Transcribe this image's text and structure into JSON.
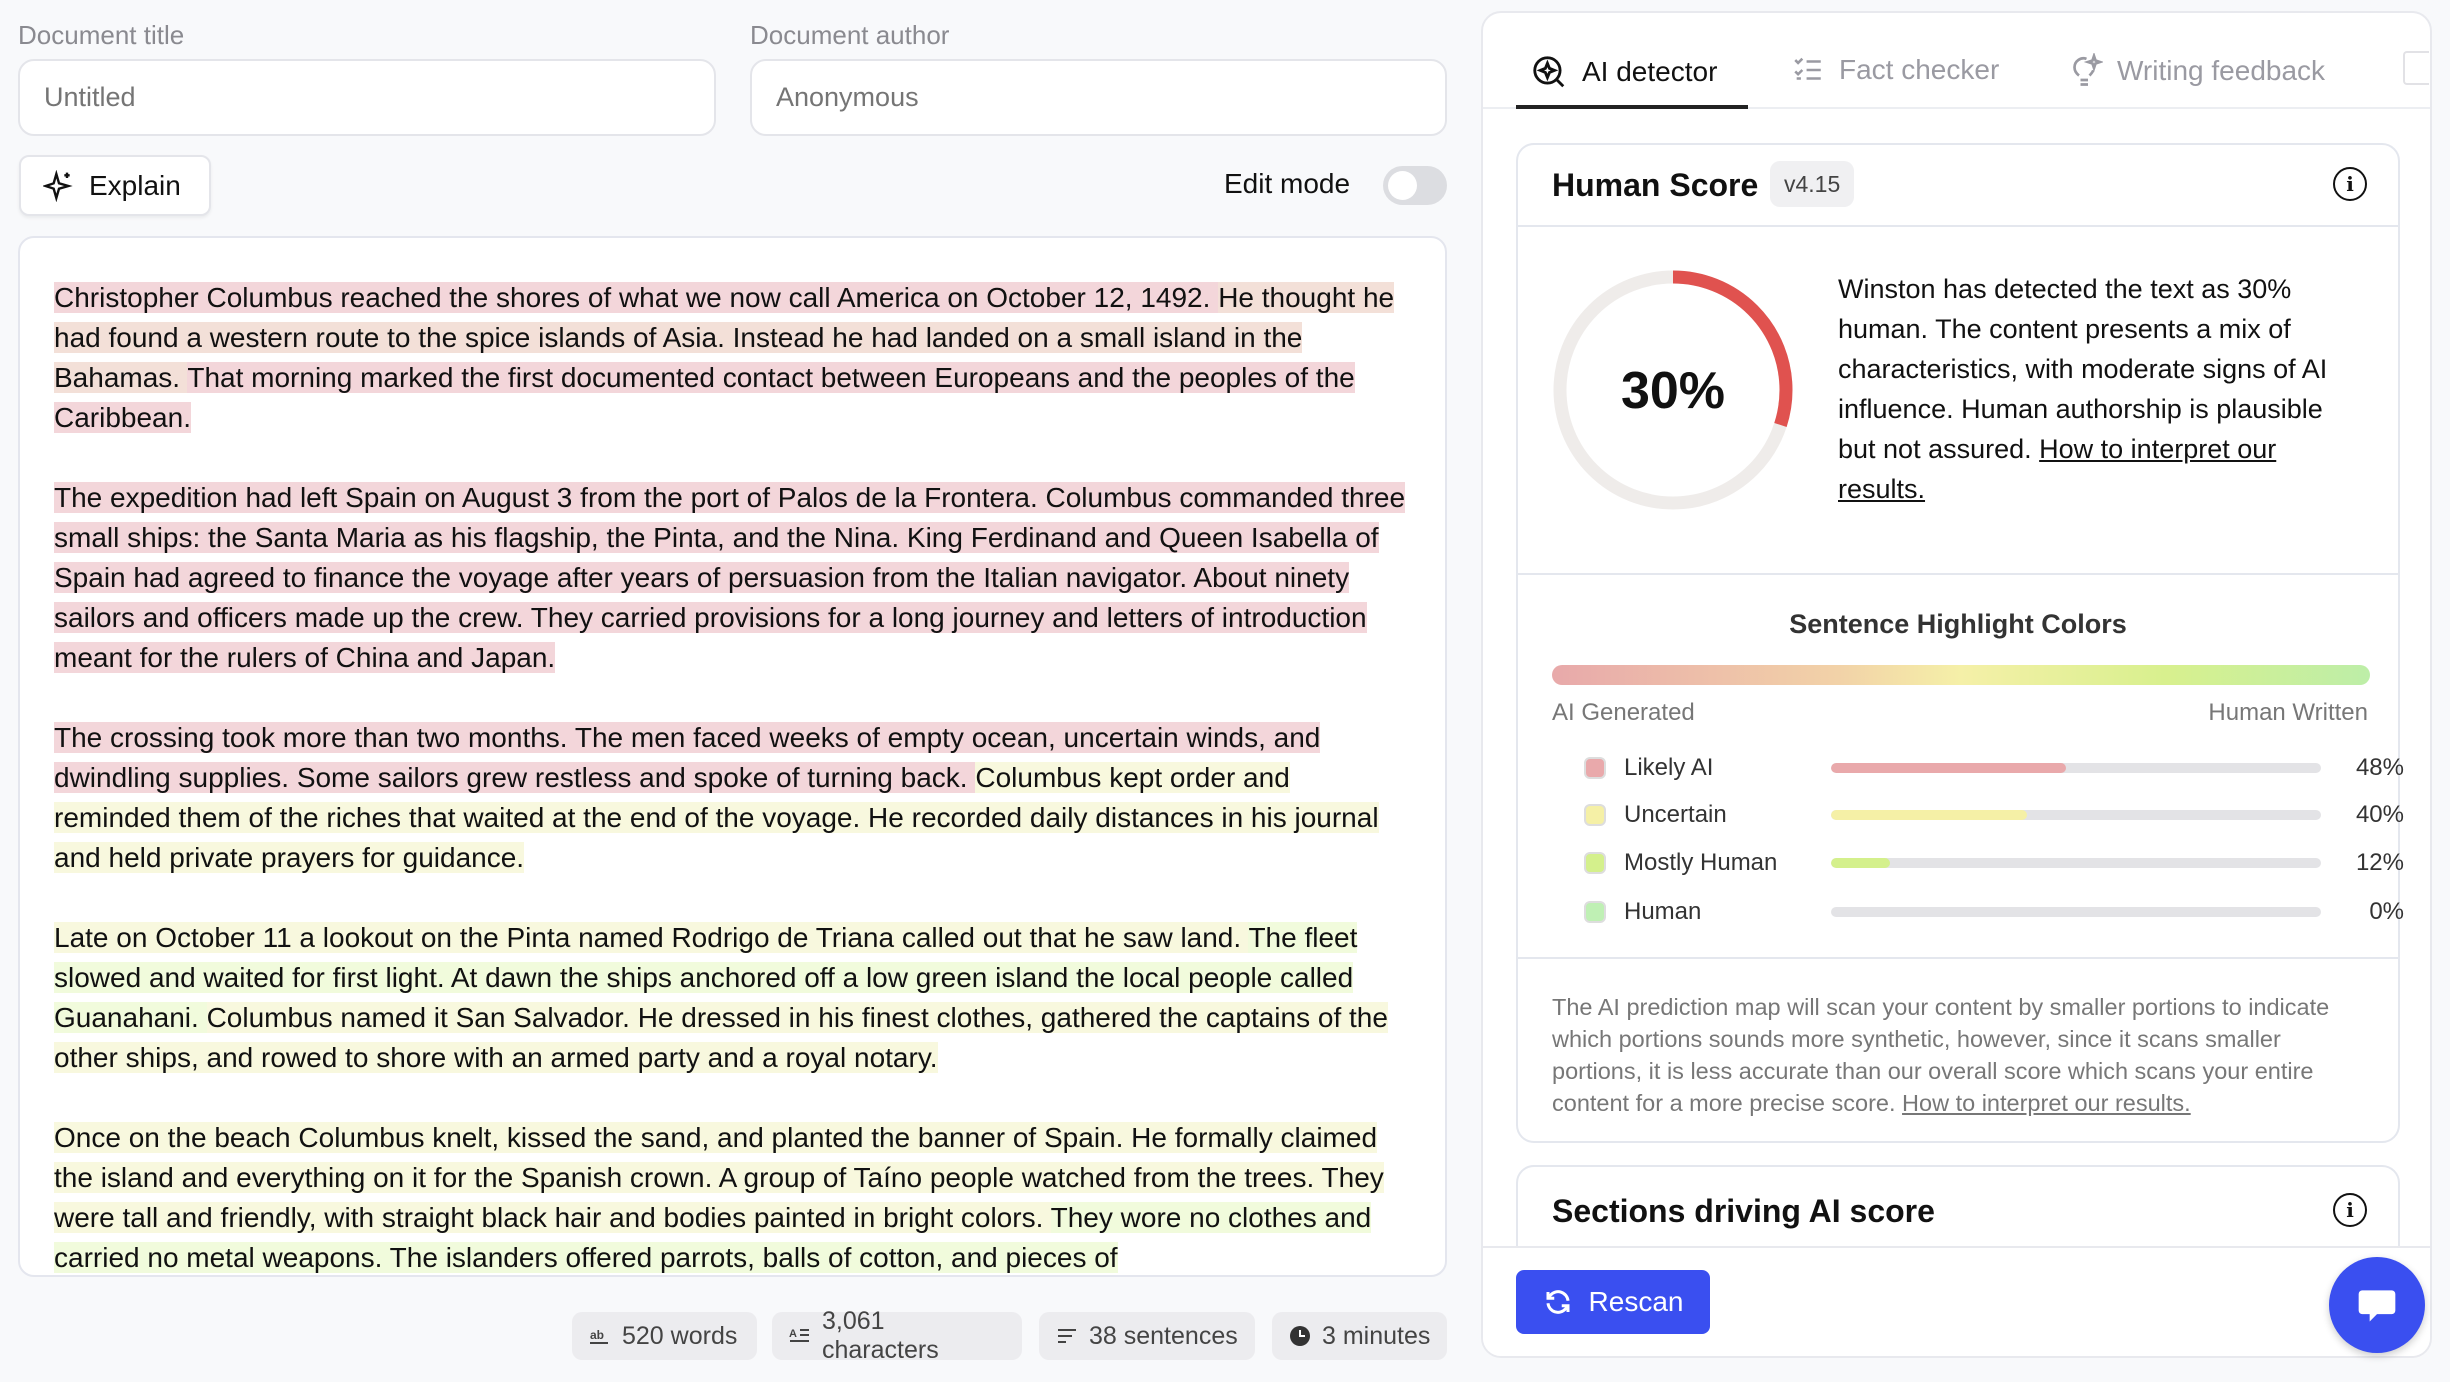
{
  "header": {
    "title_label": "Document title",
    "title_placeholder": "Untitled",
    "author_label": "Document author",
    "author_placeholder": "Anonymous",
    "explain_label": "Explain",
    "edit_mode_label": "Edit mode",
    "edit_mode_on": false
  },
  "highlight_colors": {
    "ai": "#f3d6da",
    "mixed": "#f3e0d8",
    "uncertain": "#f8f8de",
    "mostly_human": "#f1fbdc"
  },
  "document": {
    "paragraphs": [
      [
        {
          "cls": "ai",
          "text": "Christopher Columbus reached the shores of what we now call America on October 12, 1492. "
        },
        {
          "cls": "mix",
          "text": "He thought he had found a western route to the spice islands of Asia. Instead he had landed on a small island in the Bahamas. "
        },
        {
          "cls": "ai",
          "text": "That morning marked the first documented contact between Europeans and the peoples of the Caribbean."
        }
      ],
      [
        {
          "cls": "ai",
          "text": "The expedition had left Spain on August 3 from the port of Palos de la Frontera. Columbus commanded three small ships: the Santa Maria as his flagship, the Pinta, and the Nina. King Ferdinand and Queen Isabella of Spain had agreed to finance the voyage after years of persuasion from the Italian navigator. About ninety sailors and officers made up the crew. They carried provisions for a long journey and letters of introduction meant for the rulers of China and Japan."
        }
      ],
      [
        {
          "cls": "ai",
          "text": "The crossing took more than two months. The men faced weeks of empty ocean, uncertain winds, and dwindling supplies. Some sailors grew restless and spoke of turning back. "
        },
        {
          "cls": "unc",
          "text": "Columbus kept order and reminded them of the riches that waited at the end of the voyage. He recorded daily distances in his journal and held private prayers for guidance."
        }
      ],
      [
        {
          "cls": "unc",
          "text": "Late on October 11 a lookout on the Pinta named Rodrigo de Triana called out that he saw land. "
        },
        {
          "cls": "hum",
          "text": "The fleet slowed and waited for first light. At dawn the ships anchored off a low green island the local people called Guanahani. "
        },
        {
          "cls": "unc",
          "text": "Columbus named it San Salvador. He dressed in his finest clothes, gathered the captains of the other ships, and rowed to shore with an armed party and a royal notary."
        }
      ],
      [
        {
          "cls": "unc",
          "text": "Once on the beach Columbus knelt, kissed the sand, and planted the banner of Spain. He formally claimed the island and everything on it for the Spanish crown. A group of Taíno people watched from the trees. They were tall and friendly, with straight black hair and bodies painted in bright colors. "
        },
        {
          "cls": "hum",
          "text": "They wore no clothes and carried no metal weapons. The islanders offered parrots, balls of cotton, and pieces of"
        }
      ]
    ]
  },
  "stats": [
    {
      "icon": "ab-icon",
      "text": "520 words"
    },
    {
      "icon": "characters-icon",
      "text": "3,061 characters"
    },
    {
      "icon": "lines-icon",
      "text": "38 sentences"
    },
    {
      "icon": "clock-icon",
      "text": "3 minutes"
    }
  ],
  "tabs": [
    {
      "label": "AI detector",
      "icon": "ai-search-icon",
      "active": true
    },
    {
      "label": "Fact checker",
      "icon": "checklist-icon",
      "active": false
    },
    {
      "label": "Writing feedback",
      "icon": "lightbulb-icon",
      "active": false
    }
  ],
  "score": {
    "title": "Human Score",
    "version": "v4.15",
    "value": 30,
    "value_label": "30%",
    "gauge_color": "#e0524f",
    "description": "Winston has detected the text as 30% human. The content presents a mix of characteristics, with moderate signs of AI influence. Human authorship is plausible but not assured. ",
    "link": "How to interpret our results."
  },
  "legend": {
    "title": "Sentence Highlight Colors",
    "left_label": "AI Generated",
    "right_label": "Human Written",
    "rows": [
      {
        "label": "Likely AI",
        "value": 48,
        "pct": "48%",
        "color": "#e9a9ab"
      },
      {
        "label": "Uncertain",
        "value": 40,
        "pct": "40%",
        "color": "#f5f0a6"
      },
      {
        "label": "Mostly Human",
        "value": 12,
        "pct": "12%",
        "color": "#d4f08c"
      },
      {
        "label": "Human",
        "value": 0,
        "pct": "0%",
        "color": "#bff0b4"
      }
    ],
    "note": "The AI prediction map will scan your content by smaller portions to indicate which portions sounds more synthetic, however, since it scans smaller portions, it is less accurate than our overall score which scans your entire content for a more precise score. ",
    "note_link": "How to interpret our results."
  },
  "sections": {
    "title": "Sections driving AI score"
  },
  "footer": {
    "rescan_label": "Rescan",
    "accent": "#3a4ff0"
  }
}
